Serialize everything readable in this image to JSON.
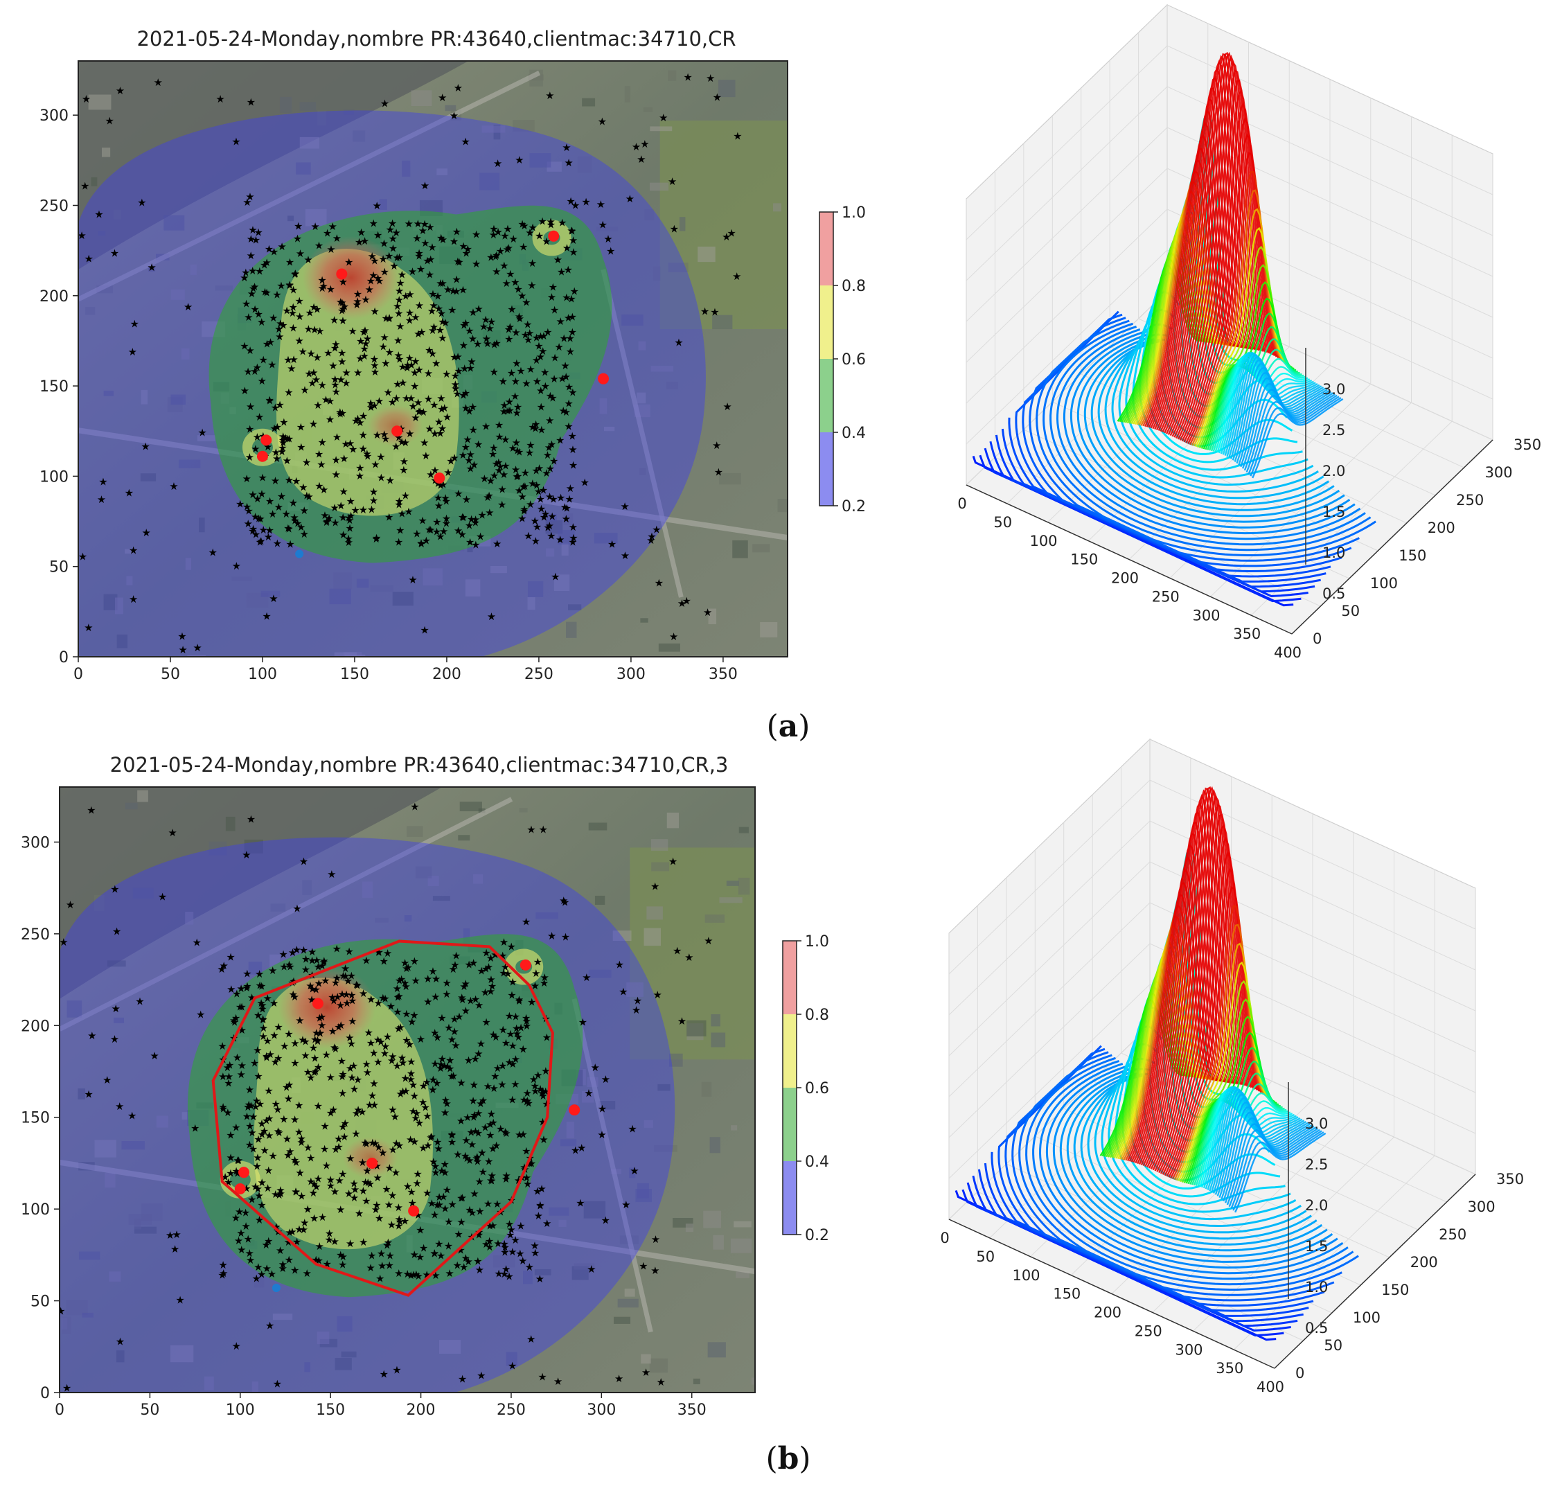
{
  "captions": [
    "(a)",
    "(b)"
  ],
  "chart_data": [
    {
      "panel": "a",
      "type": "heatmap",
      "subtype": "density map over satellite image with scatter points",
      "title": "2021-05-24-Monday,nombre PR:43640,clientmac:34710,CR",
      "xlim": [
        0,
        385
      ],
      "ylim": [
        0,
        330
      ],
      "xticks": [
        0,
        50,
        100,
        150,
        200,
        250,
        300,
        350
      ],
      "yticks": [
        0,
        50,
        100,
        150,
        200,
        250,
        300
      ],
      "colorbar": {
        "ticks": [
          "0.2",
          "0.4",
          "0.6",
          "0.8",
          "1.0"
        ],
        "colors": [
          "#8c8cf0",
          "#8cd08c",
          "#f0f08c",
          "#f0a0a0"
        ]
      },
      "red_points": [
        [
          143,
          212
        ],
        [
          258,
          233
        ],
        [
          285,
          154
        ],
        [
          102,
          120
        ],
        [
          100,
          111
        ],
        [
          173,
          125
        ],
        [
          196,
          99
        ]
      ],
      "hull": null
    },
    {
      "panel": "b",
      "type": "heatmap",
      "subtype": "density map over satellite image with scatter points and convex hull",
      "title": "2021-05-24-Monday,nombre PR:43640,clientmac:34710,CR,3",
      "xlim": [
        0,
        385
      ],
      "ylim": [
        0,
        330
      ],
      "xticks": [
        0,
        50,
        100,
        150,
        200,
        250,
        300,
        350
      ],
      "yticks": [
        0,
        50,
        100,
        150,
        200,
        250,
        300
      ],
      "colorbar": {
        "ticks": [
          "0.2",
          "0.4",
          "0.6",
          "0.8",
          "1.0"
        ],
        "colors": [
          "#8c8cf0",
          "#8cd08c",
          "#f0f08c",
          "#f0a0a0"
        ]
      },
      "red_points": [
        [
          143,
          212
        ],
        [
          258,
          233
        ],
        [
          285,
          154
        ],
        [
          102,
          120
        ],
        [
          100,
          111
        ],
        [
          173,
          125
        ],
        [
          196,
          99
        ]
      ],
      "hull": [
        [
          188,
          246
        ],
        [
          238,
          243
        ],
        [
          260,
          222
        ],
        [
          273,
          196
        ],
        [
          270,
          150
        ],
        [
          250,
          104
        ],
        [
          193,
          53
        ],
        [
          142,
          70
        ],
        [
          90,
          115
        ],
        [
          85,
          170
        ],
        [
          108,
          215
        ]
      ]
    },
    {
      "panel": "a-3d",
      "type": "surface3d",
      "x_ticks": [
        "0",
        "50",
        "100",
        "150",
        "200",
        "250",
        "300",
        "350",
        "400"
      ],
      "y_ticks": [
        "0",
        "50",
        "100",
        "150",
        "200",
        "250",
        "300",
        "350"
      ],
      "z_ticks": [
        "0.5",
        "1.0",
        "1.5",
        "2.0",
        "2.5",
        "3.0"
      ]
    },
    {
      "panel": "b-3d",
      "type": "surface3d",
      "x_ticks": [
        "0",
        "50",
        "100",
        "150",
        "200",
        "250",
        "300",
        "350",
        "400"
      ],
      "y_ticks": [
        "0",
        "50",
        "100",
        "150",
        "200",
        "250",
        "300",
        "350"
      ],
      "z_ticks": [
        "0.5",
        "1.0",
        "1.5",
        "2.0",
        "2.5",
        "3.0"
      ]
    }
  ]
}
